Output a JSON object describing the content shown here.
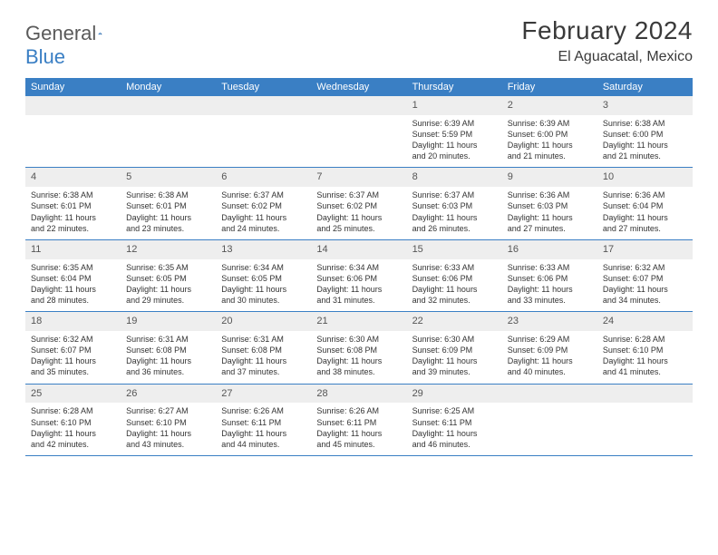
{
  "logo": {
    "text1": "General",
    "text2": "Blue"
  },
  "title": "February 2024",
  "location": "El Aguacatal, Mexico",
  "weekdays": [
    "Sunday",
    "Monday",
    "Tuesday",
    "Wednesday",
    "Thursday",
    "Friday",
    "Saturday"
  ],
  "colors": {
    "header_bar": "#3a7fc4",
    "daynum_bg": "#eeeeee",
    "text": "#333333",
    "logo_gray": "#5a5a5a",
    "logo_blue": "#3a7fc4",
    "background": "#ffffff"
  },
  "weeks": [
    [
      null,
      null,
      null,
      null,
      {
        "n": "1",
        "sunrise": "6:39 AM",
        "sunset": "5:59 PM",
        "dl1": "Daylight: 11 hours",
        "dl2": "and 20 minutes."
      },
      {
        "n": "2",
        "sunrise": "6:39 AM",
        "sunset": "6:00 PM",
        "dl1": "Daylight: 11 hours",
        "dl2": "and 21 minutes."
      },
      {
        "n": "3",
        "sunrise": "6:38 AM",
        "sunset": "6:00 PM",
        "dl1": "Daylight: 11 hours",
        "dl2": "and 21 minutes."
      }
    ],
    [
      {
        "n": "4",
        "sunrise": "6:38 AM",
        "sunset": "6:01 PM",
        "dl1": "Daylight: 11 hours",
        "dl2": "and 22 minutes."
      },
      {
        "n": "5",
        "sunrise": "6:38 AM",
        "sunset": "6:01 PM",
        "dl1": "Daylight: 11 hours",
        "dl2": "and 23 minutes."
      },
      {
        "n": "6",
        "sunrise": "6:37 AM",
        "sunset": "6:02 PM",
        "dl1": "Daylight: 11 hours",
        "dl2": "and 24 minutes."
      },
      {
        "n": "7",
        "sunrise": "6:37 AM",
        "sunset": "6:02 PM",
        "dl1": "Daylight: 11 hours",
        "dl2": "and 25 minutes."
      },
      {
        "n": "8",
        "sunrise": "6:37 AM",
        "sunset": "6:03 PM",
        "dl1": "Daylight: 11 hours",
        "dl2": "and 26 minutes."
      },
      {
        "n": "9",
        "sunrise": "6:36 AM",
        "sunset": "6:03 PM",
        "dl1": "Daylight: 11 hours",
        "dl2": "and 27 minutes."
      },
      {
        "n": "10",
        "sunrise": "6:36 AM",
        "sunset": "6:04 PM",
        "dl1": "Daylight: 11 hours",
        "dl2": "and 27 minutes."
      }
    ],
    [
      {
        "n": "11",
        "sunrise": "6:35 AM",
        "sunset": "6:04 PM",
        "dl1": "Daylight: 11 hours",
        "dl2": "and 28 minutes."
      },
      {
        "n": "12",
        "sunrise": "6:35 AM",
        "sunset": "6:05 PM",
        "dl1": "Daylight: 11 hours",
        "dl2": "and 29 minutes."
      },
      {
        "n": "13",
        "sunrise": "6:34 AM",
        "sunset": "6:05 PM",
        "dl1": "Daylight: 11 hours",
        "dl2": "and 30 minutes."
      },
      {
        "n": "14",
        "sunrise": "6:34 AM",
        "sunset": "6:06 PM",
        "dl1": "Daylight: 11 hours",
        "dl2": "and 31 minutes."
      },
      {
        "n": "15",
        "sunrise": "6:33 AM",
        "sunset": "6:06 PM",
        "dl1": "Daylight: 11 hours",
        "dl2": "and 32 minutes."
      },
      {
        "n": "16",
        "sunrise": "6:33 AM",
        "sunset": "6:06 PM",
        "dl1": "Daylight: 11 hours",
        "dl2": "and 33 minutes."
      },
      {
        "n": "17",
        "sunrise": "6:32 AM",
        "sunset": "6:07 PM",
        "dl1": "Daylight: 11 hours",
        "dl2": "and 34 minutes."
      }
    ],
    [
      {
        "n": "18",
        "sunrise": "6:32 AM",
        "sunset": "6:07 PM",
        "dl1": "Daylight: 11 hours",
        "dl2": "and 35 minutes."
      },
      {
        "n": "19",
        "sunrise": "6:31 AM",
        "sunset": "6:08 PM",
        "dl1": "Daylight: 11 hours",
        "dl2": "and 36 minutes."
      },
      {
        "n": "20",
        "sunrise": "6:31 AM",
        "sunset": "6:08 PM",
        "dl1": "Daylight: 11 hours",
        "dl2": "and 37 minutes."
      },
      {
        "n": "21",
        "sunrise": "6:30 AM",
        "sunset": "6:08 PM",
        "dl1": "Daylight: 11 hours",
        "dl2": "and 38 minutes."
      },
      {
        "n": "22",
        "sunrise": "6:30 AM",
        "sunset": "6:09 PM",
        "dl1": "Daylight: 11 hours",
        "dl2": "and 39 minutes."
      },
      {
        "n": "23",
        "sunrise": "6:29 AM",
        "sunset": "6:09 PM",
        "dl1": "Daylight: 11 hours",
        "dl2": "and 40 minutes."
      },
      {
        "n": "24",
        "sunrise": "6:28 AM",
        "sunset": "6:10 PM",
        "dl1": "Daylight: 11 hours",
        "dl2": "and 41 minutes."
      }
    ],
    [
      {
        "n": "25",
        "sunrise": "6:28 AM",
        "sunset": "6:10 PM",
        "dl1": "Daylight: 11 hours",
        "dl2": "and 42 minutes."
      },
      {
        "n": "26",
        "sunrise": "6:27 AM",
        "sunset": "6:10 PM",
        "dl1": "Daylight: 11 hours",
        "dl2": "and 43 minutes."
      },
      {
        "n": "27",
        "sunrise": "6:26 AM",
        "sunset": "6:11 PM",
        "dl1": "Daylight: 11 hours",
        "dl2": "and 44 minutes."
      },
      {
        "n": "28",
        "sunrise": "6:26 AM",
        "sunset": "6:11 PM",
        "dl1": "Daylight: 11 hours",
        "dl2": "and 45 minutes."
      },
      {
        "n": "29",
        "sunrise": "6:25 AM",
        "sunset": "6:11 PM",
        "dl1": "Daylight: 11 hours",
        "dl2": "and 46 minutes."
      },
      null,
      null
    ]
  ]
}
